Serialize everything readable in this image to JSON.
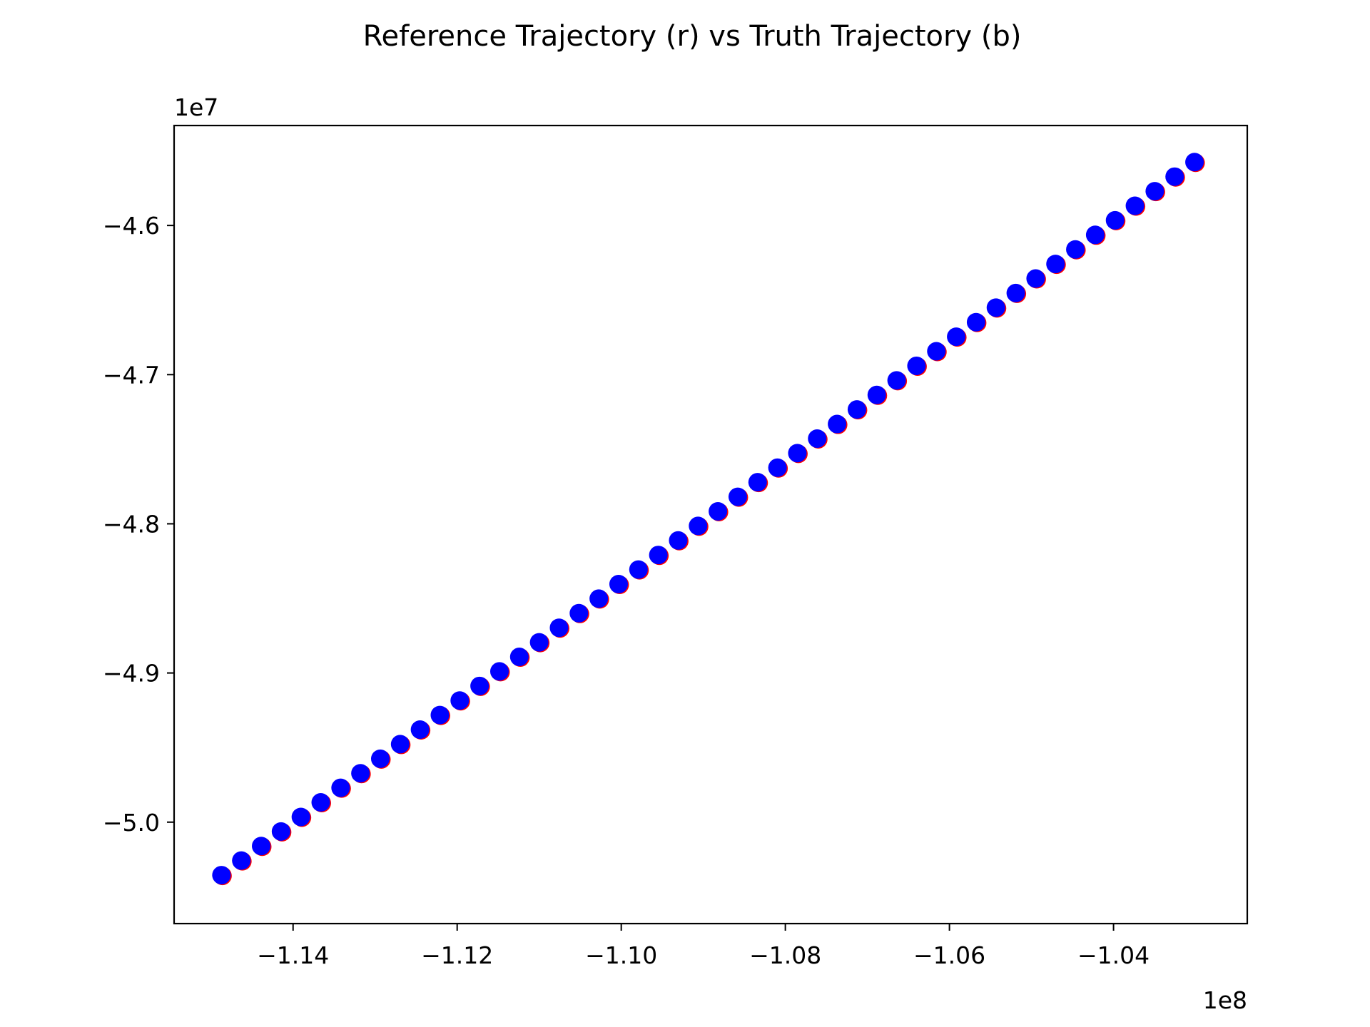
{
  "chart_data": {
    "type": "scatter",
    "title": "Reference Trajectory (r) vs Truth Trajectory (b)",
    "xlabel": "",
    "ylabel": "",
    "x_offset_label": "1e8",
    "y_offset_label": "1e7",
    "x_scale": 100000000,
    "y_scale": 10000000,
    "xlim": [
      -1.1545,
      -1.0237
    ],
    "ylim": [
      -5.068,
      -4.533
    ],
    "x_ticks": [
      -1.14,
      -1.12,
      -1.1,
      -1.08,
      -1.06,
      -1.04
    ],
    "x_tick_labels": [
      "−1.14",
      "−1.12",
      "−1.10",
      "−1.08",
      "−1.06",
      "−1.04"
    ],
    "y_ticks": [
      -4.6,
      -4.7,
      -4.8,
      -4.9,
      -5.0
    ],
    "y_tick_labels": [
      "−4.6",
      "−4.7",
      "−4.8",
      "−4.9",
      "−5.0"
    ],
    "grid": false,
    "series": [
      {
        "color": "#ff0000",
        "marker": "o",
        "x_start": -1.1486,
        "x_end": -1.03,
        "y_start": -5.036,
        "y_end": -4.558,
        "count": 50
      },
      {
        "color": "#0000ff",
        "marker": "o",
        "x_start": -1.1486,
        "x_end": -1.03,
        "y_start": -5.036,
        "y_end": -4.558,
        "count": 50
      }
    ]
  }
}
